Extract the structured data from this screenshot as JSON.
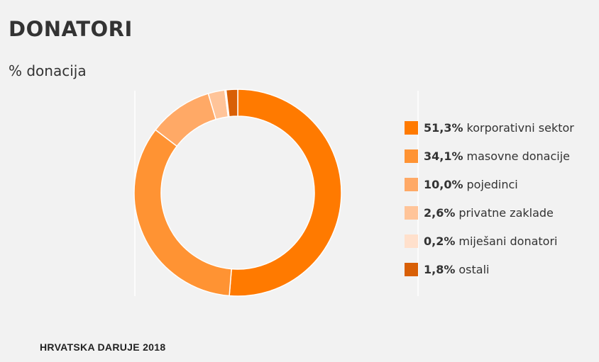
{
  "title": "DONATORI",
  "subtitle": "% donacija",
  "footer": "HRVATSKA DARUJE 2018",
  "chart_data": {
    "type": "pie",
    "title": "DONATORI",
    "subtitle": "% donacija",
    "donut": true,
    "legend_position": "right",
    "unit": "%",
    "slices": [
      {
        "label": "korporativni sektor",
        "value": 51.3,
        "value_label": "51,3%",
        "color": "#ff7a00"
      },
      {
        "label": "masovne donacije",
        "value": 34.1,
        "value_label": "34,1%",
        "color": "#ff9333"
      },
      {
        "label": "pojedinci",
        "value": 10.0,
        "value_label": "10,0%",
        "color": "#ffa966"
      },
      {
        "label": "privatne zaklade",
        "value": 2.6,
        "value_label": "2,6%",
        "color": "#ffc499"
      },
      {
        "label": "miješani donatori",
        "value": 0.2,
        "value_label": "0,2%",
        "color": "#ffe0cc"
      },
      {
        "label": "ostali",
        "value": 1.8,
        "value_label": "1,8%",
        "color": "#d85f06"
      }
    ]
  }
}
